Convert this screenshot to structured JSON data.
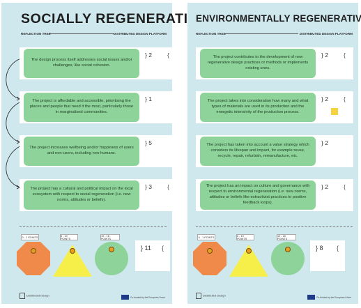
{
  "left": {
    "title": "SOCIALLY REGENERATIVE",
    "sub_left": "REFLECTION TREE",
    "sub_right": "DISTRIBUTED DESIGN PLATFORM",
    "rows": [
      {
        "text": "The design process itself addresses social issues and/or challenges, like social cohesion.",
        "score": "} 2",
        "brace": "{"
      },
      {
        "text": "The project is affordable and accessible, prioritising the places and people that need it the most, particularly those in marginalised communities.",
        "score": "} 1",
        "brace": ""
      },
      {
        "text": "The project increases wellbeing and/or happiness of users and non-users, including non-humans.",
        "score": "} 5",
        "brace": ""
      },
      {
        "text": "The project has a cultural and political impact on the local ecosystem with respect to social regeneration (i.e. new norms, attitudes or beliefs).",
        "score": "} 3",
        "brace": "{"
      }
    ],
    "tags": [
      "0 - 1 POINTS",
      "6 - 10 POINTS",
      "10 - 16 POINTS"
    ],
    "total": "} 11",
    "total_brace": "{"
  },
  "right": {
    "title": "ENVIRONMENTALLY REGENERATIVE",
    "sub_left": "REFLECTION TREE",
    "sub_right": "DISTRIBUTED DESIGN PLATFORM",
    "rows": [
      {
        "text": "The project contributes to the development of new regenerative design practices or methods or implements existing ones.",
        "score": "} 2",
        "brace": "{"
      },
      {
        "text": "The project takes into consideration how many and what types of materials are used in its production and the energetic intensivity of the production process.",
        "score": "} 2",
        "brace": "{"
      },
      {
        "text": "The project has taken into account a value strategy which considers its lifespan and impact, for example reuse, recycle, repair, refurbish, remanufacture, etc.",
        "score": "} 2",
        "brace": ""
      },
      {
        "text": "The project has an impact on culture and governance with respect to environmental regeneration (i.e. new norms, attitudes or beliefs like extractivist practices to positive feedback loops).",
        "score": "}   2",
        "brace": "{"
      }
    ],
    "tags": [
      "0 - 1 POINTS",
      "6 - 10 POINTS",
      "10 - 16 POINTS"
    ],
    "total": "} 8",
    "total_brace": "{"
  },
  "footer": {
    "logo_text": "Distributed Design",
    "funded_text": "Co-funded by the European Union"
  },
  "colors": {
    "panel_bg": "#cfe8ee",
    "card_green": "#8ed49a",
    "octagon_orange": "#f08a4b",
    "triangle_yellow": "#f6ef4a",
    "circle_green": "#8ed49a",
    "sticky_yellow": "#f5d33b"
  }
}
